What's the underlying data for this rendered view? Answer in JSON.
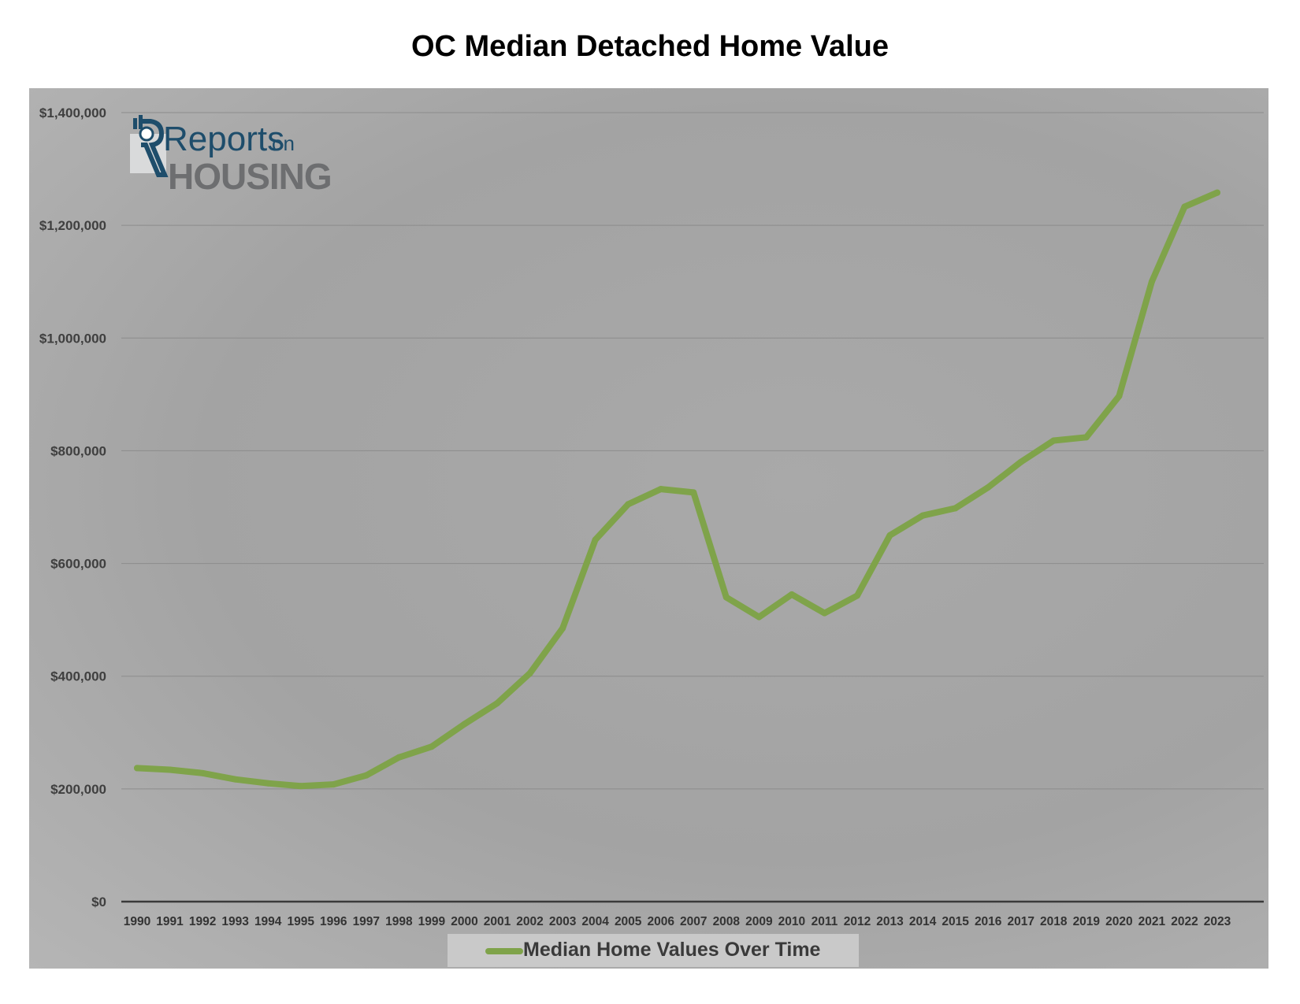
{
  "chart_data": {
    "type": "line",
    "title": "OC Median Detached Home Value",
    "xlabel": "",
    "ylabel": "",
    "ylim": [
      0,
      1400000
    ],
    "yticks": [
      0,
      200000,
      400000,
      600000,
      800000,
      1000000,
      1200000,
      1400000
    ],
    "ytick_labels": [
      "$0",
      "$200,000",
      "$400,000",
      "$600,000",
      "$800,000",
      "$1,000,000",
      "$1,200,000",
      "$1,400,000"
    ],
    "grid": true,
    "legend_position": "bottom",
    "categories": [
      "1990",
      "1991",
      "1992",
      "1993",
      "1994",
      "1995",
      "1996",
      "1997",
      "1998",
      "1999",
      "2000",
      "2001",
      "2002",
      "2003",
      "2004",
      "2005",
      "2006",
      "2007",
      "2008",
      "2009",
      "2010",
      "2011",
      "2012",
      "2013",
      "2014",
      "2015",
      "2016",
      "2017",
      "2018",
      "2019",
      "2020",
      "2021",
      "2022",
      "2023"
    ],
    "series": [
      {
        "name": "Median Home Values Over Time",
        "color": "#7fa34a",
        "values": [
          237000,
          234000,
          228000,
          217000,
          210000,
          205000,
          208000,
          224000,
          256000,
          275000,
          315000,
          352000,
          405000,
          485000,
          642000,
          705000,
          732000,
          726000,
          540000,
          505000,
          545000,
          512000,
          543000,
          650000,
          685000,
          698000,
          735000,
          780000,
          818000,
          824000,
          897000,
          1100000,
          1233000,
          1258000
        ]
      }
    ]
  },
  "logo": {
    "line1": "Reports",
    "line1_suffix": "on",
    "line2": "HOUSING",
    "primary_color": "#1e4d6b",
    "secondary_color": "#6d6e70"
  }
}
